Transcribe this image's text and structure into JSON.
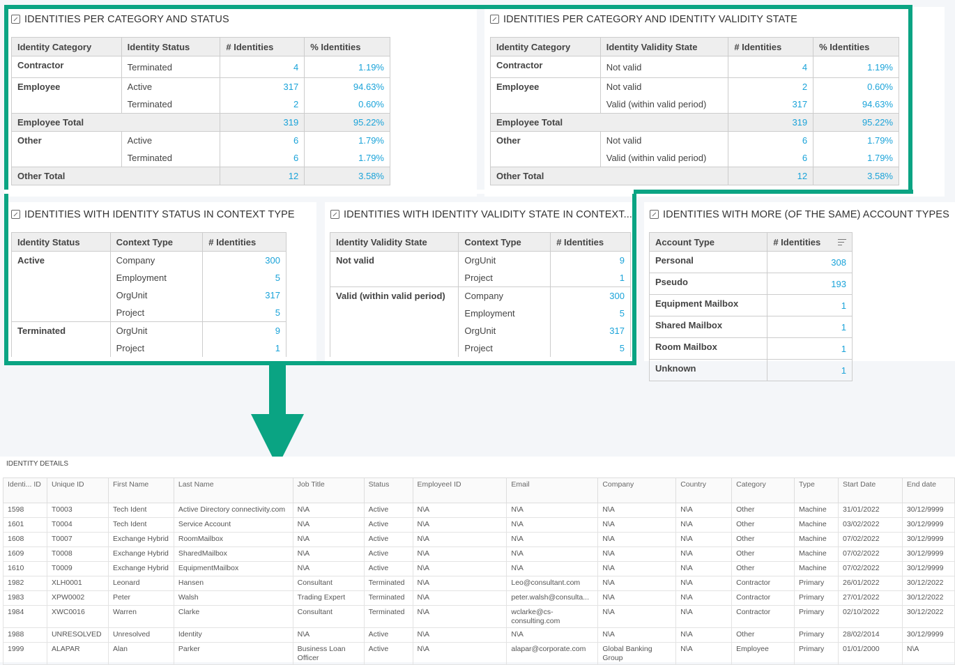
{
  "panel1": {
    "title": "IDENTITIES PER CATEGORY AND STATUS",
    "headers": [
      "Identity Category",
      "Identity Status",
      "# Identities",
      "% Identities"
    ],
    "rows": [
      {
        "a": "Contractor",
        "b": "Terminated",
        "c": "4",
        "d": "1.19%"
      },
      {
        "a": "Employee",
        "b": "Active",
        "c": "317",
        "d": "94.63%"
      },
      {
        "a": "",
        "b": "Terminated",
        "c": "2",
        "d": "0.60%"
      },
      {
        "a": "Employee Total",
        "b": "",
        "c": "319",
        "d": "95.22%"
      },
      {
        "a": "Other",
        "b": "Active",
        "c": "6",
        "d": "1.79%"
      },
      {
        "a": "",
        "b": "Terminated",
        "c": "6",
        "d": "1.79%"
      },
      {
        "a": "Other Total",
        "b": "",
        "c": "12",
        "d": "3.58%"
      }
    ]
  },
  "panel2": {
    "title": "IDENTITIES PER CATEGORY AND IDENTITY VALIDITY STATE",
    "headers": [
      "Identity Category",
      "Identity Validity State",
      "# Identities",
      "% Identities"
    ],
    "rows": [
      {
        "a": "Contractor",
        "b": "Not valid",
        "c": "4",
        "d": "1.19%"
      },
      {
        "a": "Employee",
        "b": "Not valid",
        "c": "2",
        "d": "0.60%"
      },
      {
        "a": "",
        "b": "Valid (within valid period)",
        "c": "317",
        "d": "94.63%"
      },
      {
        "a": "Employee Total",
        "b": "",
        "c": "319",
        "d": "95.22%"
      },
      {
        "a": "Other",
        "b": "Not valid",
        "c": "6",
        "d": "1.79%"
      },
      {
        "a": "",
        "b": "Valid (within valid period)",
        "c": "6",
        "d": "1.79%"
      },
      {
        "a": "Other Total",
        "b": "",
        "c": "12",
        "d": "3.58%"
      }
    ]
  },
  "panel3": {
    "title": "IDENTITIES WITH IDENTITY STATUS IN CONTEXT TYPE",
    "headers": [
      "Identity Status",
      "Context Type",
      "# Identities"
    ],
    "rows": [
      {
        "a": "Active",
        "b": "Company",
        "c": "300"
      },
      {
        "a": "",
        "b": "Employment",
        "c": "5"
      },
      {
        "a": "",
        "b": "OrgUnit",
        "c": "317"
      },
      {
        "a": "",
        "b": "Project",
        "c": "5"
      },
      {
        "a": "Terminated",
        "b": "OrgUnit",
        "c": "9"
      },
      {
        "a": "",
        "b": "Project",
        "c": "1"
      }
    ]
  },
  "panel4": {
    "title": "IDENTITIES WITH IDENTITY VALIDITY STATE IN CONTEXT...",
    "headers": [
      "Identity Validity State",
      "Context Type",
      "# Identities"
    ],
    "rows": [
      {
        "a": "Not valid",
        "b": "OrgUnit",
        "c": "9"
      },
      {
        "a": "",
        "b": "Project",
        "c": "1"
      },
      {
        "a": "Valid (within valid period)",
        "b": "Company",
        "c": "300"
      },
      {
        "a": "",
        "b": "Employment",
        "c": "5"
      },
      {
        "a": "",
        "b": "OrgUnit",
        "c": "317"
      },
      {
        "a": "",
        "b": "Project",
        "c": "5"
      }
    ]
  },
  "panel5": {
    "title": "IDENTITIES WITH MORE (OF THE SAME) ACCOUNT TYPES",
    "headers": [
      "Account Type",
      "# Identities"
    ],
    "rows": [
      {
        "a": "Personal",
        "c": "308"
      },
      {
        "a": "Pseudo",
        "c": "193"
      },
      {
        "a": "Equipment Mailbox",
        "c": "1"
      },
      {
        "a": "Shared Mailbox",
        "c": "1"
      },
      {
        "a": "Room Mailbox",
        "c": "1"
      },
      {
        "a": "Unknown",
        "c": "1"
      }
    ]
  },
  "details": {
    "title": "IDENTITY DETAILS",
    "headers": [
      "Identi... ID",
      "Unique ID",
      "First Name",
      "Last Name",
      "Job Title",
      "Status",
      "EmployeeI ID",
      "Email",
      "Company",
      "Country",
      "Category",
      "Type",
      "Start Date",
      "End date"
    ],
    "rows": [
      [
        "1598",
        "T0003",
        "Tech Ident",
        "Active Directory connectivity.com",
        "N\\A",
        "Active",
        "N\\A",
        "N\\A",
        "N\\A",
        "N\\A",
        "Other",
        "Machine",
        "31/01/2022",
        "30/12/9999"
      ],
      [
        "1601",
        "T0004",
        "Tech Ident",
        "Service Account",
        "N\\A",
        "Active",
        "N\\A",
        "N\\A",
        "N\\A",
        "N\\A",
        "Other",
        "Machine",
        "03/02/2022",
        "30/12/9999"
      ],
      [
        "1608",
        "T0007",
        "Exchange Hybrid",
        "RoomMailbox",
        "N\\A",
        "Active",
        "N\\A",
        "N\\A",
        "N\\A",
        "N\\A",
        "Other",
        "Machine",
        "07/02/2022",
        "30/12/9999"
      ],
      [
        "1609",
        "T0008",
        "Exchange Hybrid",
        "SharedMailbox",
        "N\\A",
        "Active",
        "N\\A",
        "N\\A",
        "N\\A",
        "N\\A",
        "Other",
        "Machine",
        "07/02/2022",
        "30/12/9999"
      ],
      [
        "1610",
        "T0009",
        "Exchange Hybrid",
        "EquipmentMailbox",
        "N\\A",
        "Active",
        "N\\A",
        "N\\A",
        "N\\A",
        "N\\A",
        "Other",
        "Machine",
        "07/02/2022",
        "30/12/9999"
      ],
      [
        "1982",
        "XLH0001",
        "Leonard",
        "Hansen",
        "Consultant",
        "Terminated",
        "N\\A",
        "Leo@consultant.com",
        "N\\A",
        "N\\A",
        "Contractor",
        "Primary",
        "26/01/2022",
        "30/12/2022"
      ],
      [
        "1983",
        "XPW0002",
        "Peter",
        "Walsh",
        "Trading Expert",
        "Terminated",
        "N\\A",
        "peter.walsh@consulta...",
        "N\\A",
        "N\\A",
        "Contractor",
        "Primary",
        "27/01/2022",
        "30/12/2022"
      ],
      [
        "1984",
        "XWC0016",
        "Warren",
        "Clarke",
        "Consultant",
        "Terminated",
        "N\\A",
        "wclarke@cs-consulting.com",
        "N\\A",
        "N\\A",
        "Contractor",
        "Primary",
        "02/10/2022",
        "30/12/2022"
      ],
      [
        "1988",
        "UNRESOLVED",
        "Unresolved",
        "Identity",
        "N\\A",
        "Active",
        "N\\A",
        "N\\A",
        "N\\A",
        "N\\A",
        "Other",
        "Primary",
        "28/02/2014",
        "30/12/9999"
      ],
      [
        "1999",
        "ALAPAR",
        "Alan",
        "Parker",
        "Business Loan Officer",
        "Active",
        "N\\A",
        "alapar@corporate.com",
        "Global Banking Group",
        "N\\A",
        "Employee",
        "Primary",
        "01/01/2000",
        "N\\A"
      ]
    ]
  },
  "colors": {
    "highlight": "#0aa483",
    "link": "#1aa3d9",
    "header_bg": "#eeeeee"
  },
  "icons": {
    "panel": "open-in-new-icon",
    "sort": "sort-icon",
    "arrow": "down-arrow-icon"
  }
}
